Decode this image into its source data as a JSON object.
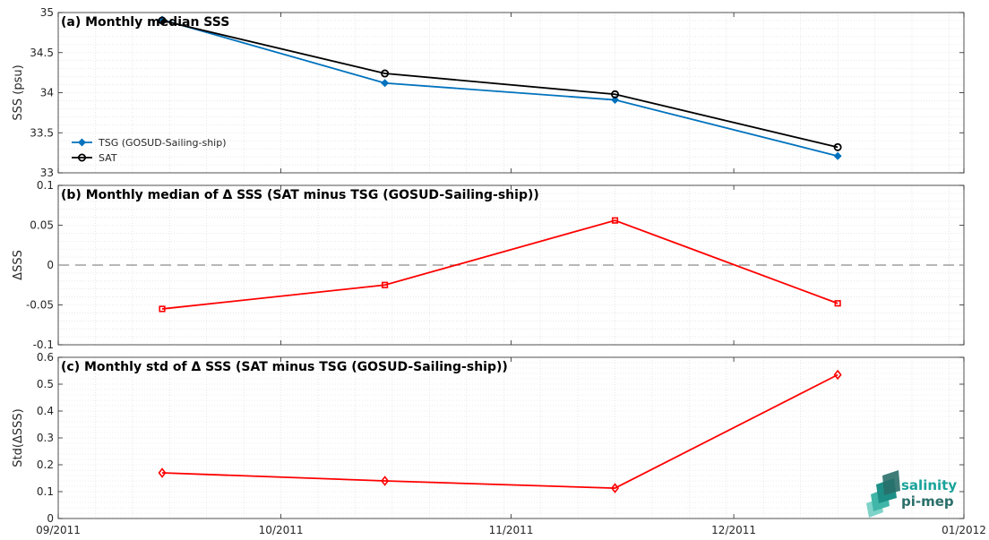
{
  "chart_data": [
    {
      "type": "line",
      "title": "(a) Monthly median SSS",
      "ylabel": "SSS (psu)",
      "xlabel": "",
      "x": [
        "2011-09-15",
        "2011-10-15",
        "2011-11-15",
        "2011-12-15"
      ],
      "series": [
        {
          "name": "TSG (GOSUD-Sailing-ship)",
          "color": "#0072bd",
          "marker": "diamond-filled",
          "values": [
            34.91,
            34.12,
            33.91,
            33.21
          ]
        },
        {
          "name": "SAT",
          "color": "#000000",
          "marker": "circle-open",
          "values": [
            34.9,
            34.24,
            33.98,
            33.32
          ]
        }
      ],
      "ylim": [
        33,
        35
      ],
      "yticks": [
        "33",
        "33.5",
        "34",
        "34.5",
        "35"
      ],
      "legend": "bottom-left",
      "grid": true
    },
    {
      "type": "line",
      "title": "(b) Monthly median of Δ SSS (SAT minus TSG (GOSUD-Sailing-ship))",
      "ylabel": "ΔSSS",
      "xlabel": "",
      "x": [
        "2011-09-15",
        "2011-10-15",
        "2011-11-15",
        "2011-12-15"
      ],
      "series": [
        {
          "color": "#ff0000",
          "marker": "square-open",
          "values": [
            -0.055,
            -0.025,
            0.056,
            -0.048
          ]
        }
      ],
      "reference_line": 0,
      "ylim": [
        -0.1,
        0.1
      ],
      "yticks": [
        "-0.1",
        "-0.05",
        "0",
        "0.05",
        "0.1"
      ],
      "grid": true
    },
    {
      "type": "line",
      "title": "(c) Monthly std of Δ SSS (SAT minus TSG (GOSUD-Sailing-ship))",
      "ylabel": "Std(ΔSSS)",
      "xlabel": "",
      "x": [
        "2011-09-15",
        "2011-10-15",
        "2011-11-15",
        "2011-12-15"
      ],
      "series": [
        {
          "color": "#ff0000",
          "marker": "diamond-open",
          "values": [
            0.17,
            0.14,
            0.113,
            0.535
          ]
        }
      ],
      "ylim": [
        0,
        0.6
      ],
      "yticks": [
        "0",
        "0.1",
        "0.2",
        "0.3",
        "0.4",
        "0.5",
        "0.6"
      ],
      "grid": true
    }
  ],
  "xaxis": {
    "range": [
      "2011-09-01",
      "2012-01-01"
    ],
    "ticks": [
      {
        "date": "2011-09-01",
        "label": "09/2011"
      },
      {
        "date": "2011-10-01",
        "label": "10/2011"
      },
      {
        "date": "2011-11-01",
        "label": "11/2011"
      },
      {
        "date": "2011-12-01",
        "label": "12/2011"
      },
      {
        "date": "2012-01-01",
        "label": "01/2012"
      }
    ]
  },
  "logo": {
    "line1": "salinity",
    "line2": "pi-mep"
  }
}
